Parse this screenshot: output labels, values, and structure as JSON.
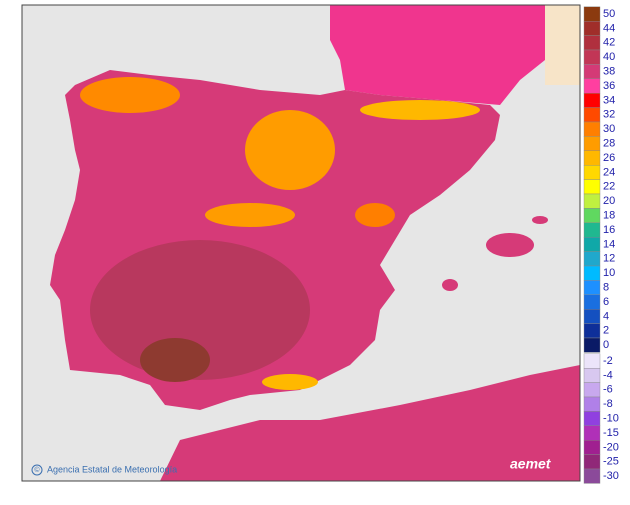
{
  "legend": {
    "upper": [
      {
        "value": 50,
        "color": "#8b3a0f"
      },
      {
        "value": 44,
        "color": "#a02e2a"
      },
      {
        "value": 42,
        "color": "#b0303e"
      },
      {
        "value": 40,
        "color": "#c23656"
      },
      {
        "value": 38,
        "color": "#d43a76"
      },
      {
        "value": 36,
        "color": "#ff3fa0"
      },
      {
        "value": 34,
        "color": "#ff0000"
      },
      {
        "value": 32,
        "color": "#ff4a00"
      },
      {
        "value": 30,
        "color": "#ff7f00"
      },
      {
        "value": 28,
        "color": "#ff9c00"
      },
      {
        "value": 26,
        "color": "#ffb800"
      },
      {
        "value": 24,
        "color": "#ffd800"
      },
      {
        "value": 22,
        "color": "#ffff00"
      },
      {
        "value": 20,
        "color": "#c0f040"
      },
      {
        "value": 18,
        "color": "#60d860"
      },
      {
        "value": 16,
        "color": "#20b890"
      },
      {
        "value": 14,
        "color": "#10a8a8"
      },
      {
        "value": 12,
        "color": "#20a8cc"
      },
      {
        "value": 10,
        "color": "#00bbff"
      },
      {
        "value": 8,
        "color": "#1e90ff"
      },
      {
        "value": 6,
        "color": "#1a6fe0"
      },
      {
        "value": 4,
        "color": "#1450c0"
      },
      {
        "value": 2,
        "color": "#0e2f99"
      },
      {
        "value": 0,
        "color": "#0a1a66"
      }
    ],
    "lower": [
      {
        "value": -2,
        "color": "#ece4fa"
      },
      {
        "value": -4,
        "color": "#d8c8f0"
      },
      {
        "value": -6,
        "color": "#c8a8ee"
      },
      {
        "value": -8,
        "color": "#b080e8"
      },
      {
        "value": -10,
        "color": "#9040e0"
      },
      {
        "value": -15,
        "color": "#b030b8"
      },
      {
        "value": -20,
        "color": "#a02090"
      },
      {
        "value": -25,
        "color": "#902878"
      },
      {
        "value": -30,
        "color": "#8b4a9a"
      }
    ]
  },
  "footer": {
    "agency": "Agencia Estatal de Meteorología",
    "copyright": "©",
    "brand": "aemet"
  }
}
